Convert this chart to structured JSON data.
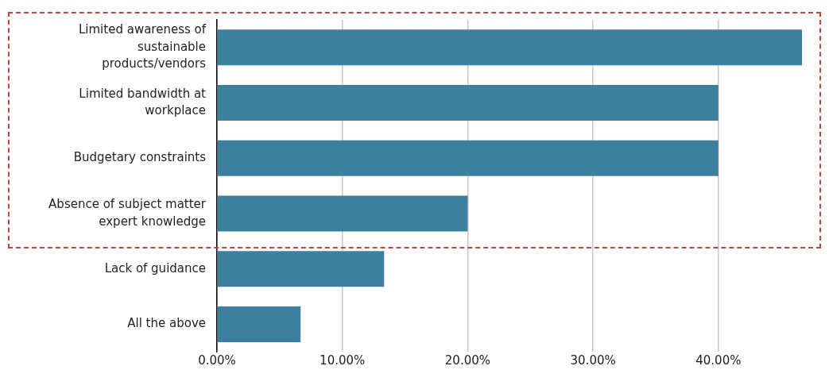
{
  "chart_data": {
    "type": "bar",
    "orientation": "horizontal",
    "categories": [
      "Limited awareness of sustainable products/vendors",
      "Limited bandwidth at workplace",
      "Budgetary constraints",
      "Absence of subject matter expert knowledge",
      "Lack of guidance",
      "All the above"
    ],
    "values": [
      46.67,
      40,
      40,
      20,
      13.33,
      6.67
    ],
    "color": "#3d7f9e",
    "xlim": [
      0,
      48
    ],
    "xticks": [
      {
        "value": 0,
        "label": "0.00%"
      },
      {
        "value": 10,
        "label": "10.00%"
      },
      {
        "value": 20,
        "label": "20.00%"
      },
      {
        "value": 30,
        "label": "30.00%"
      },
      {
        "value": 40,
        "label": "40.00%"
      }
    ],
    "grid": "x",
    "legend": false
  }
}
